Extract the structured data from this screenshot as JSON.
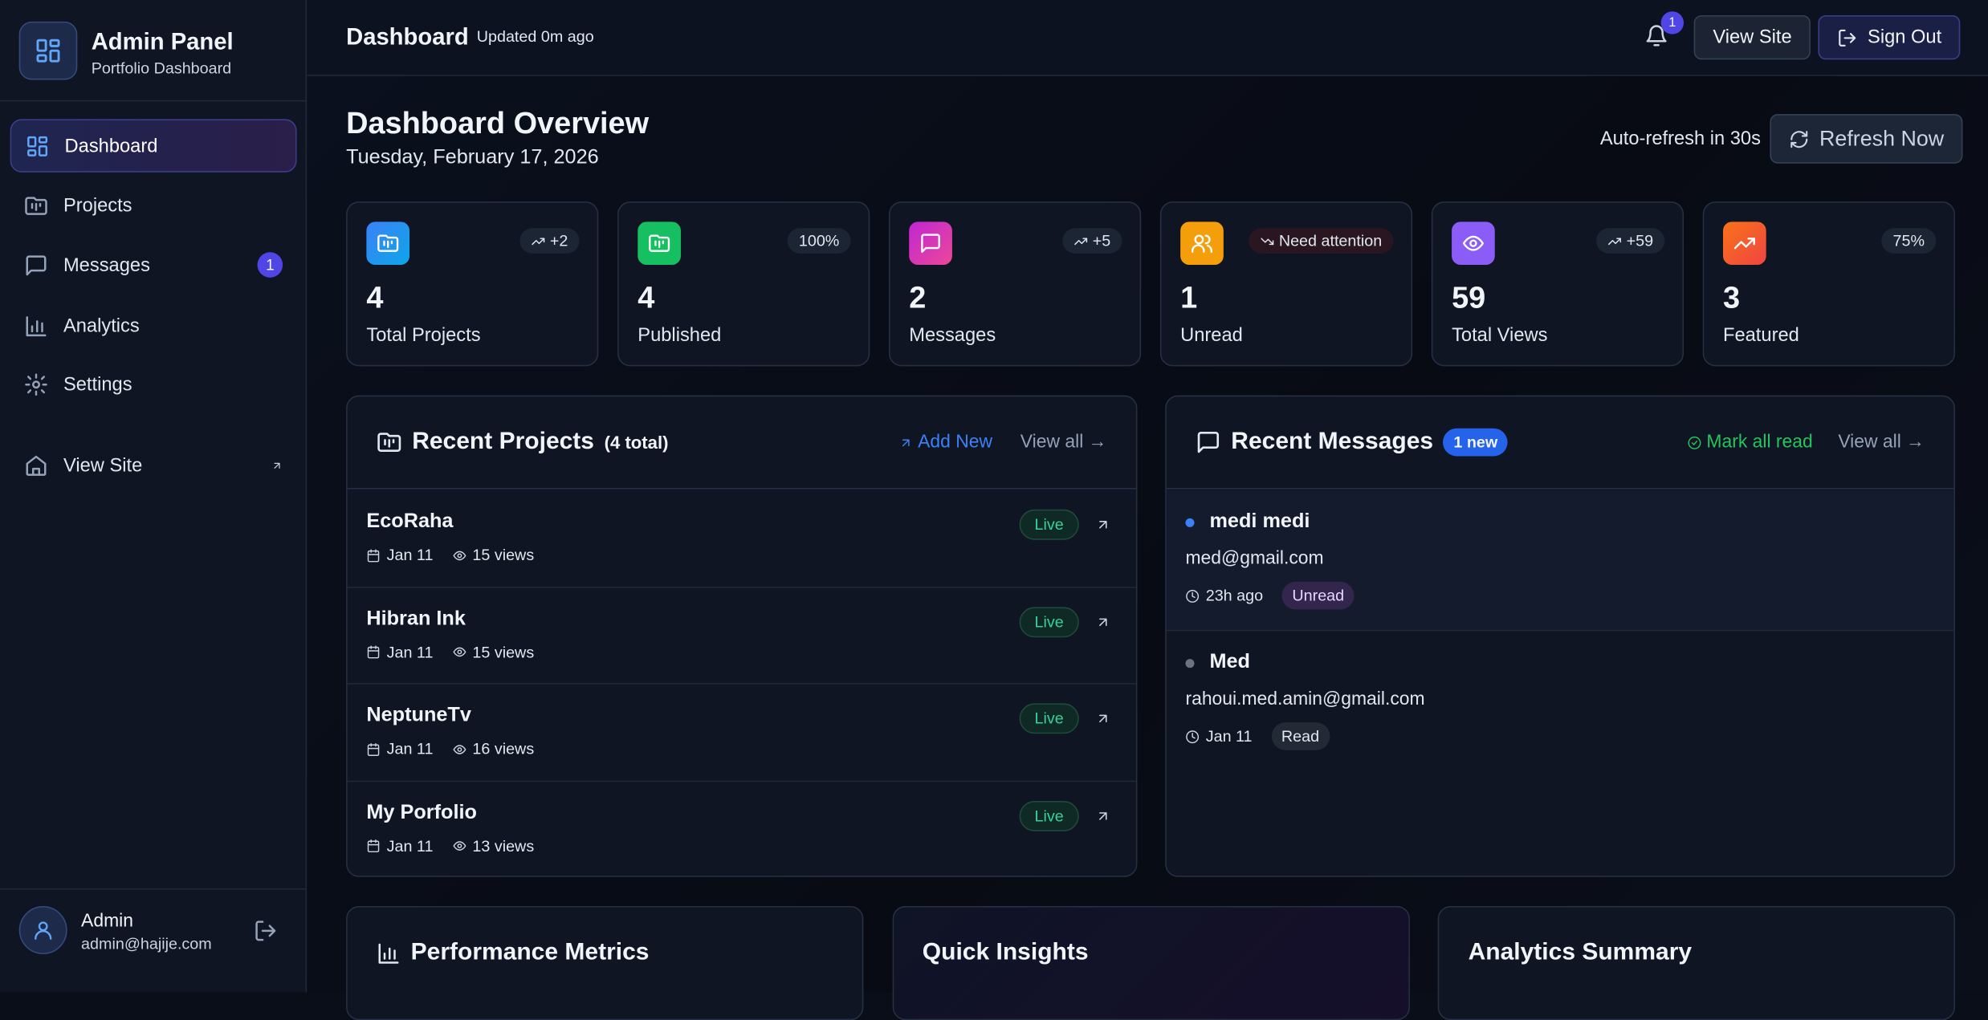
{
  "sidebar": {
    "title": "Admin Panel",
    "subtitle": "Portfolio Dashboard",
    "nav": [
      {
        "label": "Dashboard"
      },
      {
        "label": "Projects"
      },
      {
        "label": "Messages",
        "badge": "1"
      },
      {
        "label": "Analytics"
      },
      {
        "label": "Settings"
      },
      {
        "label": "View Site"
      }
    ],
    "user": {
      "name": "Admin",
      "email": "admin@hajije.com"
    }
  },
  "header": {
    "title": "Dashboard",
    "updated": "Updated 0m ago",
    "notifications": "1",
    "view_site": "View Site",
    "sign_out": "Sign Out"
  },
  "overview": {
    "title": "Dashboard Overview",
    "date": "Tuesday, February 17, 2026",
    "auto_refresh": "Auto-refresh in 30s",
    "refresh": "Refresh Now"
  },
  "stats": [
    {
      "value": "4",
      "label": "Total Projects",
      "badge": "+2"
    },
    {
      "value": "4",
      "label": "Published",
      "badge": "100%"
    },
    {
      "value": "2",
      "label": "Messages",
      "badge": "+5"
    },
    {
      "value": "1",
      "label": "Unread",
      "badge": "Need attention"
    },
    {
      "value": "59",
      "label": "Total Views",
      "badge": "+59"
    },
    {
      "value": "3",
      "label": "Featured",
      "badge": "75%"
    }
  ],
  "projects": {
    "title": "Recent Projects",
    "count": "(4 total)",
    "add": "Add New",
    "view_all": "View all →",
    "items": [
      {
        "name": "EcoRaha",
        "date": "Jan 11",
        "views": "15 views",
        "status": "Live"
      },
      {
        "name": "Hibran Ink",
        "date": "Jan 11",
        "views": "15 views",
        "status": "Live"
      },
      {
        "name": "NeptuneTv",
        "date": "Jan 11",
        "views": "16 views",
        "status": "Live"
      },
      {
        "name": "My Porfolio",
        "date": "Jan 11",
        "views": "13 views",
        "status": "Live"
      }
    ]
  },
  "messages": {
    "title": "Recent Messages",
    "badge": "1 new",
    "mark_read": "Mark all read",
    "view_all": "View all →",
    "items": [
      {
        "name": "medi medi",
        "email": "med@gmail.com",
        "time": "23h ago",
        "status": "Unread"
      },
      {
        "name": "Med",
        "email": "rahoui.med.amin@gmail.com",
        "time": "Jan 11",
        "status": "Read"
      }
    ]
  },
  "bottom": [
    {
      "title": "Performance Metrics"
    },
    {
      "title": "Quick Insights"
    },
    {
      "title": "Analytics Summary"
    }
  ]
}
